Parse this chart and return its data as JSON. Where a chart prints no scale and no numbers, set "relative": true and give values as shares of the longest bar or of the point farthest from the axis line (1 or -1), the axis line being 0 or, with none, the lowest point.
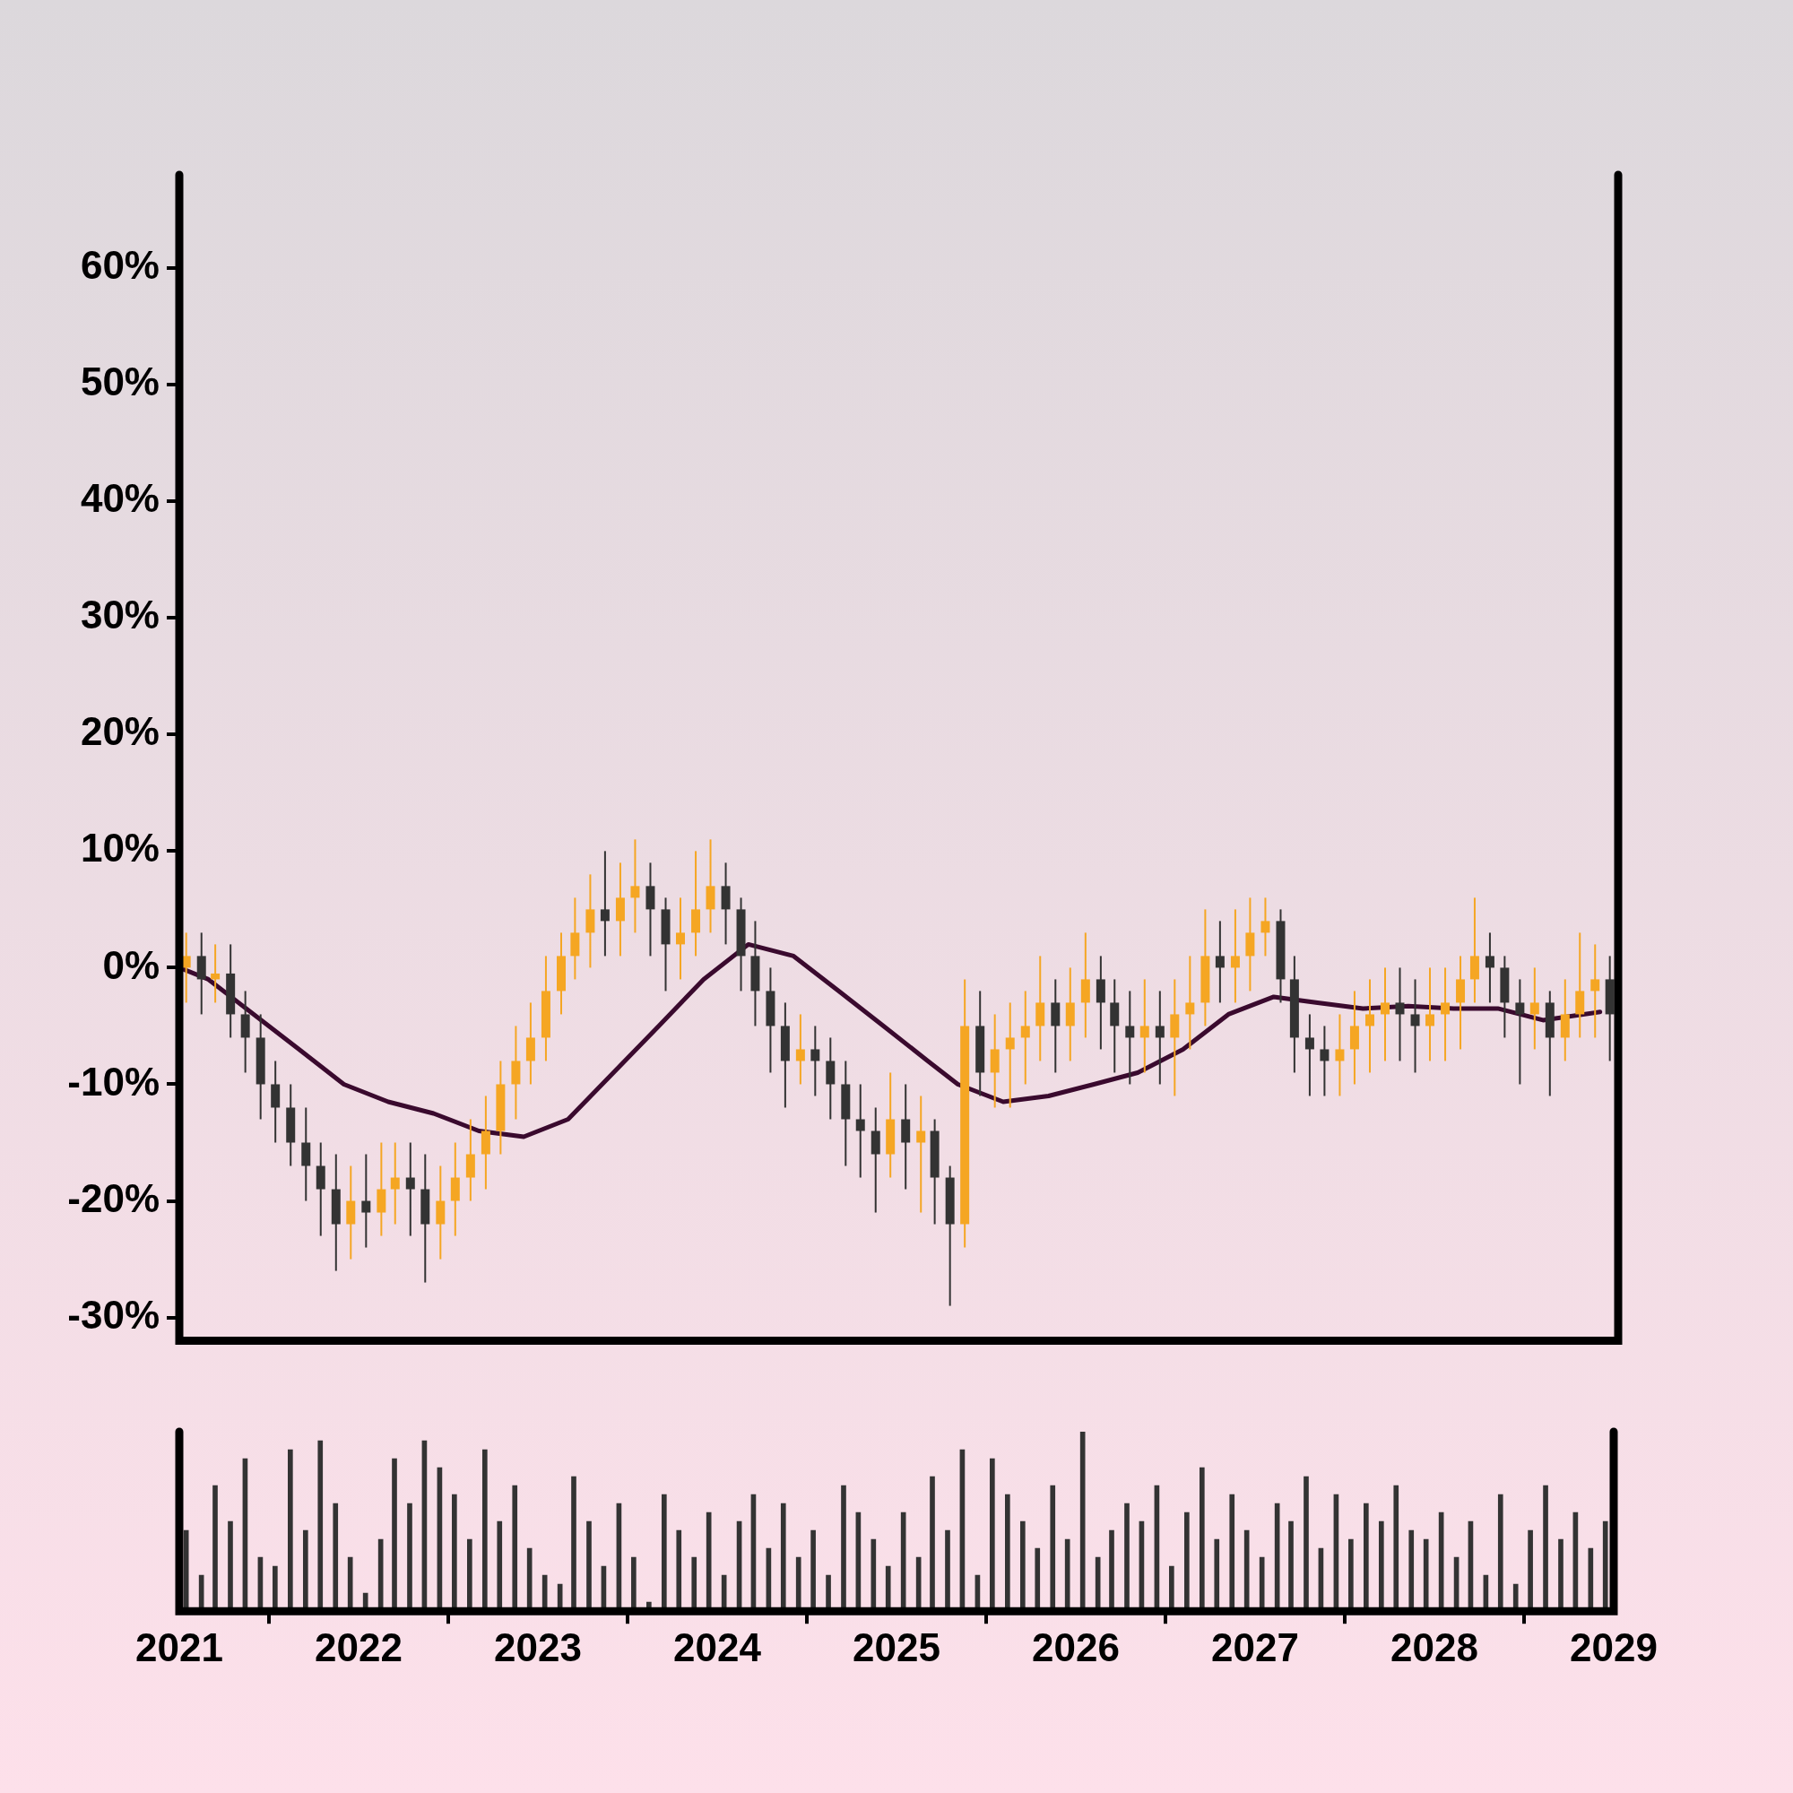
{
  "chart_data": [
    {
      "type": "candlestick",
      "xlim": [
        "2021-01-01",
        "2029-01-01"
      ],
      "ylim": [
        -32,
        68
      ],
      "yticks": [
        {
          "value": -30,
          "label": "-30%"
        },
        {
          "value": -20,
          "label": "-20%"
        },
        {
          "value": -10,
          "label": "-10%"
        },
        {
          "value": 0,
          "label": "0%"
        },
        {
          "value": 10,
          "label": "10%"
        },
        {
          "value": 20,
          "label": "20%"
        },
        {
          "value": 30,
          "label": "30%"
        },
        {
          "value": 40,
          "label": "40%"
        },
        {
          "value": 50,
          "label": "50%"
        },
        {
          "value": 60,
          "label": "60%"
        }
      ],
      "tick_labels": "y",
      "x": [
        "2021-01-15",
        "2021-02-15",
        "2021-03-15",
        "2021-04-15",
        "2021-05-15",
        "2021-06-15",
        "2021-07-15",
        "2021-08-15",
        "2021-09-15",
        "2021-10-15",
        "2021-11-15",
        "2021-12-15",
        "2022-01-15",
        "2022-02-15",
        "2022-03-15",
        "2022-04-15",
        "2022-05-15",
        "2022-06-15",
        "2022-07-15",
        "2022-08-15",
        "2022-09-15",
        "2022-10-15",
        "2022-11-15",
        "2022-12-15",
        "2023-01-15",
        "2023-02-15",
        "2023-03-15",
        "2023-04-15",
        "2023-05-15",
        "2023-06-15",
        "2023-07-15",
        "2023-08-15",
        "2023-09-15",
        "2023-10-15",
        "2023-11-15",
        "2023-12-15",
        "2024-01-15",
        "2024-02-15",
        "2024-03-15",
        "2024-04-15",
        "2024-05-15",
        "2024-06-15",
        "2024-07-15",
        "2024-08-15",
        "2024-09-15",
        "2024-10-15",
        "2024-11-15",
        "2024-12-15",
        "2025-01-15",
        "2025-02-15",
        "2025-03-15",
        "2025-04-15",
        "2025-05-15",
        "2025-06-15",
        "2025-07-15",
        "2025-08-15",
        "2025-09-15",
        "2025-10-15",
        "2025-11-15",
        "2025-12-15",
        "2026-01-15",
        "2026-02-15",
        "2026-03-15",
        "2026-04-15",
        "2026-05-15",
        "2026-06-15",
        "2026-07-15",
        "2026-08-15",
        "2026-09-15",
        "2026-10-15",
        "2026-11-15",
        "2026-12-15",
        "2027-01-15",
        "2027-02-15",
        "2027-03-15",
        "2027-04-15",
        "2027-05-15",
        "2027-06-15",
        "2027-07-15",
        "2027-08-15",
        "2027-09-15",
        "2027-10-15",
        "2027-11-15",
        "2027-12-15",
        "2028-01-15",
        "2028-02-15",
        "2028-03-15",
        "2028-04-15",
        "2028-05-15",
        "2028-06-15",
        "2028-07-15",
        "2028-08-15",
        "2028-09-15",
        "2028-10-15",
        "2028-11-15",
        "2028-12-15"
      ],
      "ohlc": [
        [
          0,
          3,
          -3,
          1
        ],
        [
          1,
          3,
          -4,
          -1
        ],
        [
          -1,
          2,
          -3,
          -0.5
        ],
        [
          -0.5,
          2,
          -6,
          -4
        ],
        [
          -4,
          -2,
          -9,
          -6
        ],
        [
          -6,
          -4,
          -13,
          -10
        ],
        [
          -10,
          -8,
          -15,
          -12
        ],
        [
          -12,
          -10,
          -17,
          -15
        ],
        [
          -15,
          -12,
          -20,
          -17
        ],
        [
          -17,
          -15,
          -23,
          -19
        ],
        [
          -19,
          -16,
          -26,
          -22
        ],
        [
          -22,
          -17,
          -25,
          -20
        ],
        [
          -20,
          -16,
          -24,
          -21
        ],
        [
          -21,
          -15,
          -23,
          -19
        ],
        [
          -19,
          -15,
          -22,
          -18
        ],
        [
          -18,
          -15,
          -23,
          -19
        ],
        [
          -19,
          -16,
          -27,
          -22
        ],
        [
          -22,
          -17,
          -25,
          -20
        ],
        [
          -20,
          -15,
          -23,
          -18
        ],
        [
          -18,
          -13,
          -20,
          -16
        ],
        [
          -16,
          -11,
          -19,
          -14
        ],
        [
          -14,
          -8,
          -16,
          -10
        ],
        [
          -10,
          -5,
          -13,
          -8
        ],
        [
          -8,
          -3,
          -10,
          -6
        ],
        [
          -6,
          1,
          -8,
          -2
        ],
        [
          -2,
          3,
          -4,
          1
        ],
        [
          1,
          6,
          -1,
          3
        ],
        [
          3,
          8,
          0,
          5
        ],
        [
          5,
          10,
          1,
          4
        ],
        [
          4,
          9,
          1,
          6
        ],
        [
          6,
          11,
          3,
          7
        ],
        [
          7,
          9,
          1,
          5
        ],
        [
          5,
          6,
          -2,
          2
        ],
        [
          2,
          6,
          -1,
          3
        ],
        [
          3,
          10,
          1,
          5
        ],
        [
          5,
          11,
          3,
          7
        ],
        [
          7,
          9,
          2,
          5
        ],
        [
          5,
          6,
          -2,
          1
        ],
        [
          1,
          4,
          -5,
          -2
        ],
        [
          -2,
          0,
          -9,
          -5
        ],
        [
          -5,
          -3,
          -12,
          -8
        ],
        [
          -8,
          -4,
          -10,
          -7
        ],
        [
          -7,
          -5,
          -11,
          -8
        ],
        [
          -8,
          -6,
          -13,
          -10
        ],
        [
          -10,
          -8,
          -17,
          -13
        ],
        [
          -13,
          -10,
          -18,
          -14
        ],
        [
          -14,
          -12,
          -21,
          -16
        ],
        [
          -16,
          -9,
          -18,
          -13
        ],
        [
          -13,
          -10,
          -19,
          -15
        ],
        [
          -15,
          -11,
          -21,
          -14
        ],
        [
          -14,
          -13,
          -22,
          -18
        ],
        [
          -18,
          -17,
          -29,
          -22
        ],
        [
          -22,
          -1,
          -24,
          -5
        ],
        [
          -5,
          -2,
          -11,
          -9
        ],
        [
          -9,
          -4,
          -12,
          -7
        ],
        [
          -7,
          -3,
          -12,
          -6
        ],
        [
          -6,
          -2,
          -10,
          -5
        ],
        [
          -5,
          1,
          -8,
          -3
        ],
        [
          -3,
          -1,
          -9,
          -5
        ],
        [
          -5,
          0,
          -8,
          -3
        ],
        [
          -3,
          3,
          -6,
          -1
        ],
        [
          -1,
          1,
          -7,
          -3
        ],
        [
          -3,
          -1,
          -9,
          -5
        ],
        [
          -5,
          -2,
          -10,
          -6
        ],
        [
          -6,
          -1,
          -9,
          -5
        ],
        [
          -5,
          -2,
          -10,
          -6
        ],
        [
          -6,
          -1,
          -11,
          -4
        ],
        [
          -4,
          1,
          -7,
          -3
        ],
        [
          -3,
          5,
          -5,
          1
        ],
        [
          1,
          4,
          -3,
          0
        ],
        [
          0,
          5,
          -3,
          1
        ],
        [
          1,
          6,
          -2,
          3
        ],
        [
          3,
          6,
          1,
          4
        ],
        [
          4,
          5,
          -3,
          -1
        ],
        [
          -1,
          1,
          -9,
          -6
        ],
        [
          -6,
          -4,
          -11,
          -7
        ],
        [
          -7,
          -5,
          -11,
          -8
        ],
        [
          -8,
          -4,
          -11,
          -7
        ],
        [
          -7,
          -2,
          -10,
          -5
        ],
        [
          -5,
          -1,
          -9,
          -4
        ],
        [
          -4,
          0,
          -8,
          -3
        ],
        [
          -3,
          0,
          -8,
          -4
        ],
        [
          -4,
          -1,
          -9,
          -5
        ],
        [
          -5,
          0,
          -8,
          -4
        ],
        [
          -4,
          0,
          -8,
          -3
        ],
        [
          -3,
          1,
          -7,
          -1
        ],
        [
          -1,
          6,
          -3,
          1
        ],
        [
          1,
          3,
          -3,
          0
        ],
        [
          0,
          1,
          -6,
          -3
        ],
        [
          -3,
          -1,
          -10,
          -4
        ],
        [
          -4,
          0,
          -7,
          -3
        ],
        [
          -3,
          -2,
          -11,
          -6
        ],
        [
          -6,
          -1,
          -8,
          -4
        ],
        [
          -4,
          3,
          -6,
          -2
        ],
        [
          -2,
          2,
          -6,
          -1
        ],
        [
          -1,
          1,
          -8,
          -4
        ]
      ],
      "colors": [
        "#f5a623",
        "#333333",
        "#f5a623",
        "#333333",
        "#333333",
        "#333333",
        "#333333",
        "#333333",
        "#333333",
        "#333333",
        "#333333",
        "#f5a623",
        "#333333",
        "#f5a623",
        "#f5a623",
        "#333333",
        "#333333",
        "#f5a623",
        "#f5a623",
        "#f5a623",
        "#f5a623",
        "#f5a623",
        "#f5a623",
        "#f5a623",
        "#f5a623",
        "#f5a623",
        "#f5a623",
        "#f5a623",
        "#333333",
        "#f5a623",
        "#f5a623",
        "#333333",
        "#333333",
        "#f5a623",
        "#f5a623",
        "#f5a623",
        "#333333",
        "#333333",
        "#333333",
        "#333333",
        "#333333",
        "#f5a623",
        "#333333",
        "#333333",
        "#333333",
        "#333333",
        "#333333",
        "#f5a623",
        "#333333",
        "#f5a623",
        "#333333",
        "#333333",
        "#f5a623",
        "#333333",
        "#f5a623",
        "#f5a623",
        "#f5a623",
        "#f5a623",
        "#333333",
        "#f5a623",
        "#f5a623",
        "#333333",
        "#333333",
        "#333333",
        "#f5a623",
        "#333333",
        "#f5a623",
        "#f5a623",
        "#f5a623",
        "#333333",
        "#f5a623",
        "#f5a623",
        "#f5a623",
        "#333333",
        "#333333",
        "#333333",
        "#333333",
        "#f5a623",
        "#f5a623",
        "#f5a623",
        "#f5a623",
        "#333333",
        "#333333",
        "#f5a623",
        "#f5a623",
        "#f5a623",
        "#f5a623",
        "#333333",
        "#333333",
        "#333333",
        "#f5a623",
        "#333333",
        "#f5a623",
        "#f5a623",
        "#f5a623",
        "#333333"
      ],
      "series": [
        {
          "type": "line",
          "color": "#3a0a2e",
          "x": [
            "2021-01-01",
            "2021-03-01",
            "2021-06-01",
            "2021-09-01",
            "2021-12-01",
            "2022-03-01",
            "2022-06-01",
            "2022-09-01",
            "2022-12-01",
            "2023-03-01",
            "2023-06-01",
            "2023-09-01",
            "2023-12-01",
            "2024-03-01",
            "2024-06-01",
            "2024-09-01",
            "2024-12-01",
            "2025-03-01",
            "2025-05-01",
            "2025-08-01",
            "2025-11-01",
            "2026-02-01",
            "2026-05-01",
            "2026-08-01",
            "2026-11-01",
            "2027-02-01",
            "2027-05-01",
            "2027-08-01",
            "2027-11-01",
            "2028-02-01",
            "2028-05-01",
            "2028-08-01",
            "2028-11-25"
          ],
          "values": [
            0,
            -1,
            -4,
            -7,
            -10,
            -11.5,
            -12.5,
            -14,
            -14.5,
            -13,
            -9,
            -5,
            -1,
            2,
            1,
            -2,
            -5,
            -8,
            -10,
            -11.5,
            -11,
            -10,
            -9,
            -7,
            -4,
            -2.5,
            -3,
            -3.5,
            -3.3,
            -3.5,
            -3.5,
            -4.5,
            -3.8
          ]
        }
      ]
    },
    {
      "type": "bar",
      "relative": true,
      "color": "#333333",
      "xlim": [
        "2021-01-01",
        "2029-01-01"
      ],
      "xticks": [
        {
          "value": "2021",
          "label": "2021"
        },
        {
          "value": "2022",
          "label": "2022"
        },
        {
          "value": "2023",
          "label": "2023"
        },
        {
          "value": "2024",
          "label": "2024"
        },
        {
          "value": "2025",
          "label": "2025"
        },
        {
          "value": "2026",
          "label": "2026"
        },
        {
          "value": "2027",
          "label": "2027"
        },
        {
          "value": "2028",
          "label": "2028"
        },
        {
          "value": "2029",
          "label": "2029"
        }
      ],
      "tick_labels": "x",
      "x": [
        "2021-01-15",
        "2021-02-15",
        "2021-03-15",
        "2021-04-15",
        "2021-05-15",
        "2021-06-15",
        "2021-07-15",
        "2021-08-15",
        "2021-09-15",
        "2021-10-15",
        "2021-11-15",
        "2021-12-15",
        "2022-01-15",
        "2022-02-15",
        "2022-03-15",
        "2022-04-15",
        "2022-05-15",
        "2022-06-15",
        "2022-07-15",
        "2022-08-15",
        "2022-09-15",
        "2022-10-15",
        "2022-11-15",
        "2022-12-15",
        "2023-01-15",
        "2023-02-15",
        "2023-03-15",
        "2023-04-15",
        "2023-05-15",
        "2023-06-15",
        "2023-07-15",
        "2023-08-15",
        "2023-09-15",
        "2023-10-15",
        "2023-11-15",
        "2023-12-15",
        "2024-01-15",
        "2024-02-15",
        "2024-03-15",
        "2024-04-15",
        "2024-05-15",
        "2024-06-15",
        "2024-07-15",
        "2024-08-15",
        "2024-09-15",
        "2024-10-15",
        "2024-11-15",
        "2024-12-15",
        "2025-01-15",
        "2025-02-15",
        "2025-03-15",
        "2025-04-15",
        "2025-05-15",
        "2025-06-15",
        "2025-07-15",
        "2025-08-15",
        "2025-09-15",
        "2025-10-15",
        "2025-11-15",
        "2025-12-15",
        "2026-01-15",
        "2026-02-15",
        "2026-03-15",
        "2026-04-15",
        "2026-05-15",
        "2026-06-15",
        "2026-07-15",
        "2026-08-15",
        "2026-09-15",
        "2026-10-15",
        "2026-11-15",
        "2026-12-15",
        "2027-01-15",
        "2027-02-15",
        "2027-03-15",
        "2027-04-15",
        "2027-05-15",
        "2027-06-15",
        "2027-07-15",
        "2027-08-15",
        "2027-09-15",
        "2027-10-15",
        "2027-11-15",
        "2027-12-15",
        "2028-01-15",
        "2028-02-15",
        "2028-03-15",
        "2028-04-15",
        "2028-05-15",
        "2028-06-15",
        "2028-07-15",
        "2028-08-15",
        "2028-09-15",
        "2028-10-15",
        "2028-11-15",
        "2028-12-15"
      ],
      "values": [
        0.45,
        0.2,
        0.7,
        0.5,
        0.85,
        0.3,
        0.25,
        0.9,
        0.45,
        0.95,
        0.6,
        0.3,
        0.1,
        0.4,
        0.85,
        0.6,
        0.95,
        0.8,
        0.65,
        0.4,
        0.9,
        0.5,
        0.7,
        0.35,
        0.2,
        0.15,
        0.75,
        0.5,
        0.25,
        0.6,
        0.3,
        0.05,
        0.65,
        0.45,
        0.3,
        0.55,
        0.2,
        0.5,
        0.65,
        0.35,
        0.6,
        0.3,
        0.45,
        0.2,
        0.7,
        0.55,
        0.4,
        0.25,
        0.55,
        0.3,
        0.75,
        0.45,
        0.9,
        0.2,
        0.85,
        0.65,
        0.5,
        0.35,
        0.7,
        0.4,
        1.0,
        0.3,
        0.45,
        0.6,
        0.5,
        0.7,
        0.25,
        0.55,
        0.8,
        0.4,
        0.65,
        0.45,
        0.3,
        0.6,
        0.5,
        0.75,
        0.35,
        0.65,
        0.4,
        0.6,
        0.5,
        0.7,
        0.45,
        0.4,
        0.55,
        0.3,
        0.5,
        0.2,
        0.65,
        0.15,
        0.45,
        0.7,
        0.4,
        0.55,
        0.35,
        0.5
      ]
    }
  ]
}
